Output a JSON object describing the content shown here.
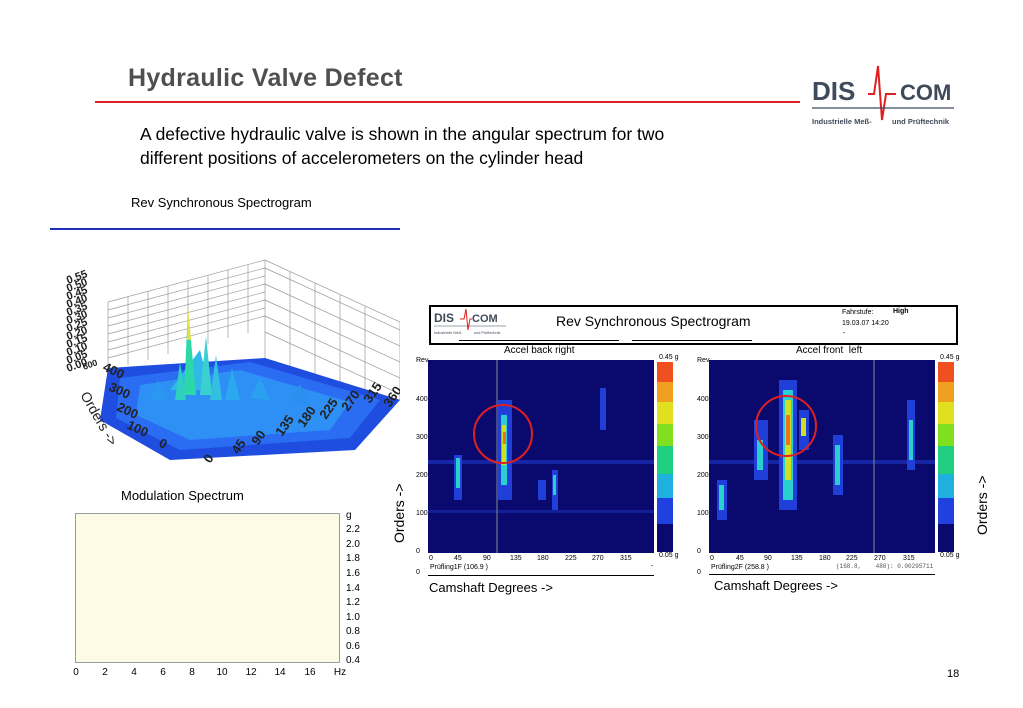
{
  "slide": {
    "title": "Hydraulic Valve Defect",
    "intro_line1": "A defective hydraulic valve is shown in the angular spectrum for two",
    "intro_line2": "different positions of accelerometers on the cylinder head",
    "page_number": "18"
  },
  "logo": {
    "text_left": "DIS",
    "text_right": "COM",
    "tagline_left": "Industrielle Meß-",
    "tagline_right": "und Prüftechnik"
  },
  "spectrogram3d": {
    "heading": "Rev Synchronous Spectrogram",
    "z_ticks": [
      "0.55",
      "0.50",
      "0.45",
      "0.40",
      "0.35",
      "0.30",
      "0.25",
      "0.20",
      "0.15",
      "0.10",
      "0.05",
      "0.00"
    ],
    "orders_ticks": [
      "400",
      "300",
      "200",
      "100",
      "0"
    ],
    "orders_label": "Orders ->",
    "angle_ticks": [
      "0",
      "45",
      "90",
      "135",
      "180",
      "225",
      "270",
      "315",
      "360"
    ],
    "extra_tick": "600"
  },
  "modulation": {
    "heading": "Modulation Spectrum",
    "y_unit": "g",
    "y_ticks": [
      "2.2",
      "2.0",
      "1.8",
      "1.6",
      "1.4",
      "1.2",
      "1.0",
      "0.8",
      "0.6",
      "0.4"
    ],
    "x_ticks": [
      "0",
      "2",
      "4",
      "6",
      "8",
      "10",
      "12",
      "14",
      "16"
    ],
    "x_unit": "Hz"
  },
  "panel": {
    "heading": "Rev Synchronous Spectrogram",
    "fahrstufe_label": "Fahrstufe:",
    "fahrstufe_value": "High",
    "date": "19.03.07 14:20",
    "dash": "-",
    "orders_label_left": "Orders ->",
    "orders_label_right": "Orders ->",
    "left": {
      "heading": "Accel back right",
      "rev_label": "Rev",
      "scale_top": "0.45 g",
      "scale_bottom": "0.05 g",
      "y_ticks": [
        "400",
        "300",
        "200",
        "100",
        "0"
      ],
      "x_ticks": [
        "0",
        "45",
        "90",
        "135",
        "180",
        "225",
        "270",
        "315"
      ],
      "footer": "Prüfling1F (106.9 )",
      "footer_right": "-",
      "x_label": "Camshaft Degrees ->"
    },
    "right": {
      "heading": "Accel front  left",
      "rev_label": "Rev",
      "scale_top": "0.45 g",
      "scale_bottom": "0.05 g",
      "y_ticks": [
        "400",
        "300",
        "200",
        "100",
        "0"
      ],
      "x_ticks": [
        "0",
        "45",
        "90",
        "135",
        "180",
        "225",
        "270",
        "315"
      ],
      "footer": "Prüfling2F (258.8 )",
      "readout": "(168.8,    488): 0.00295711",
      "x_label": "Camshaft Degrees ->"
    }
  },
  "colors": {
    "title": "#4f4f4f",
    "title_rule": "#e02020",
    "blue_rule": "#1f2fb8",
    "plot_bg": "#0a0a6e",
    "highlight_circle": "#e02020",
    "modulation_bg": "#fdfbe5"
  }
}
